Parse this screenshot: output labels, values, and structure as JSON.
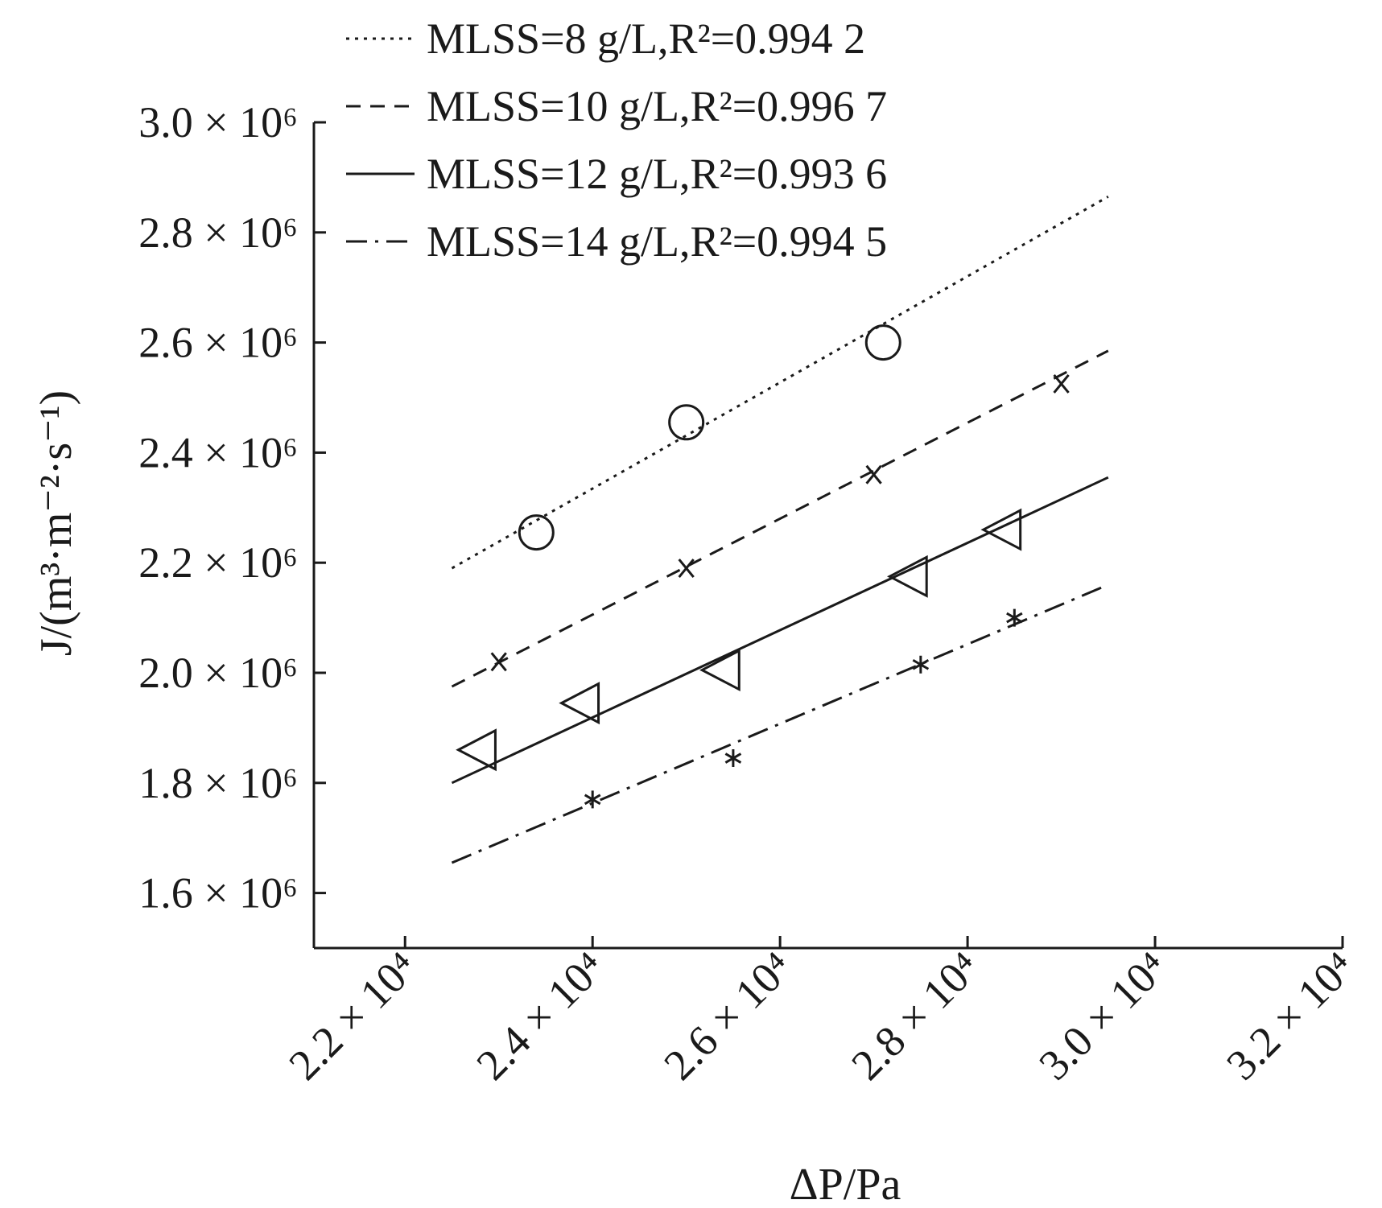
{
  "chart_data": {
    "type": "scatter",
    "title": "",
    "xlabel": "ΔP/Pa",
    "ylabel": "J/(m³·m⁻²·s⁻¹)",
    "xlim": [
      21500,
      32000
    ],
    "ylim": [
      1500000,
      3000000
    ],
    "x_ticks": [
      22000,
      24000,
      26000,
      28000,
      30000,
      32000
    ],
    "x_tick_labels": [
      "2.2 × 10⁴",
      "2.4 × 10⁴",
      "2.6 × 10⁴",
      "2.8 × 10⁴",
      "3.0 × 10⁴",
      "3.2 × 10⁴"
    ],
    "y_ticks": [
      1600000,
      1800000,
      2000000,
      2200000,
      2400000,
      2600000,
      2800000,
      3000000
    ],
    "y_tick_labels": [
      "1.6 × 10⁶",
      "1.8 × 10⁶",
      "2.0 × 10⁶",
      "2.2 × 10⁶",
      "2.4 × 10⁶",
      "2.6 × 10⁶",
      "2.8 × 10⁶",
      "3.0 × 10⁶"
    ],
    "grid": false,
    "legend_position": "top",
    "series": [
      {
        "name": "MLSS=8 g/L,R²=0.994 2",
        "line_style": "dotted",
        "marker": "circle",
        "points": [
          [
            23400,
            2255000
          ],
          [
            25000,
            2455000
          ],
          [
            27100,
            2600000
          ]
        ],
        "fit": [
          [
            22500,
            2190000
          ],
          [
            29500,
            2865000
          ]
        ]
      },
      {
        "name": "MLSS=10 g/L,R²=0.996 7",
        "line_style": "dashed",
        "marker": "x",
        "points": [
          [
            23000,
            2020000
          ],
          [
            25000,
            2190000
          ],
          [
            27000,
            2360000
          ],
          [
            29000,
            2525000
          ]
        ],
        "fit": [
          [
            22500,
            1975000
          ],
          [
            29500,
            2585000
          ]
        ]
      },
      {
        "name": "MLSS=12 g/L,R²=0.993 6",
        "line_style": "solid",
        "marker": "triangle-left",
        "points": [
          [
            22800,
            1860000
          ],
          [
            23900,
            1945000
          ],
          [
            25400,
            2005000
          ],
          [
            27400,
            2175000
          ],
          [
            28400,
            2260000
          ]
        ],
        "fit": [
          [
            22500,
            1800000
          ],
          [
            29500,
            2355000
          ]
        ]
      },
      {
        "name": "MLSS=14 g/L,R²=0.994 5",
        "line_style": "dashdot",
        "marker": "asterisk",
        "points": [
          [
            24000,
            1770000
          ],
          [
            25500,
            1845000
          ],
          [
            27500,
            2015000
          ],
          [
            28500,
            2100000
          ]
        ],
        "fit": [
          [
            22500,
            1655000
          ],
          [
            29500,
            2160000
          ]
        ]
      }
    ]
  }
}
